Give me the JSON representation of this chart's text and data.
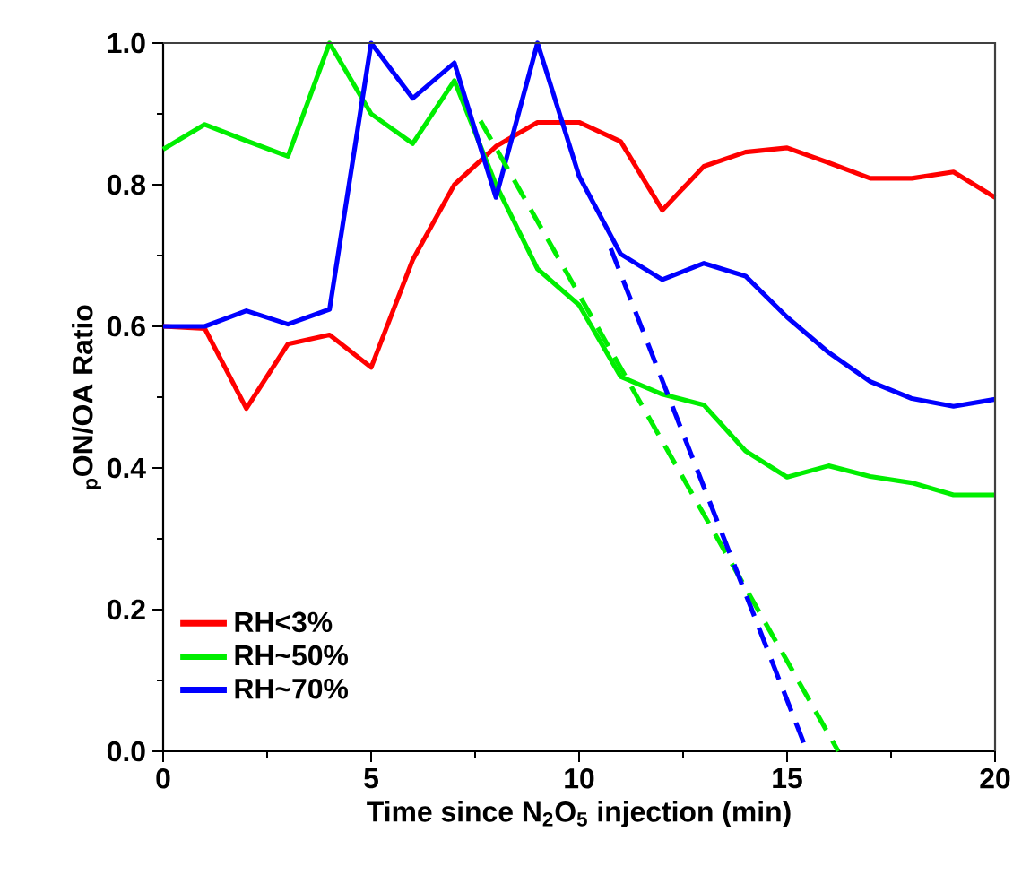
{
  "chart_data": {
    "type": "line",
    "xlabel": "Time since N$_{2}$O$_{5}$ injection (min)",
    "ylabel": "$_{p}$ON/OA Ratio",
    "x": [
      0,
      1,
      2,
      3,
      4,
      5,
      6,
      7,
      8,
      9,
      10,
      11,
      12,
      13,
      14,
      15,
      16,
      17,
      18,
      19,
      20
    ],
    "xlim": [
      0,
      20
    ],
    "xticks": [
      0,
      5,
      10,
      15,
      20
    ],
    "ylim": [
      0,
      1
    ],
    "yticks": [
      {
        "value": 0,
        "label": "0.0"
      },
      {
        "value": 0.2,
        "label": "0.2"
      },
      {
        "value": 0.4,
        "label": "0.4"
      },
      {
        "value": 0.6,
        "label": "0.6"
      },
      {
        "value": 0.8,
        "label": "0.8"
      },
      {
        "value": 1,
        "label": "1.0"
      }
    ],
    "grid": false,
    "legend": "bottom left",
    "marker": "none",
    "line_style": "solid",
    "series": [
      {
        "name": "RH<3%",
        "color": "#ff0000",
        "values": [
          0.6,
          0.597,
          0.484,
          0.575,
          0.588,
          0.542,
          0.694,
          0.8,
          0.854,
          0.888,
          0.888,
          0.861,
          0.764,
          0.826,
          0.846,
          0.852,
          0.831,
          0.809,
          0.809,
          0.818,
          0.782
        ]
      },
      {
        "name": "RH~50%",
        "color": "#00ee00",
        "values": [
          0.85,
          0.885,
          0.862,
          0.84,
          1.0,
          0.9,
          0.858,
          0.947,
          0.8,
          0.681,
          0.63,
          0.529,
          0.504,
          0.489,
          0.424,
          0.387,
          0.403,
          0.388,
          0.379,
          0.362,
          0.362
        ]
      },
      {
        "name": "RH~70%",
        "color": "#0000ff",
        "values": [
          0.6,
          0.6,
          0.622,
          0.603,
          0.624,
          1.0,
          0.922,
          0.972,
          0.782,
          1.0,
          0.812,
          0.702,
          0.666,
          0.689,
          0.671,
          0.613,
          0.563,
          0.522,
          0.498,
          0.487,
          0.497
        ]
      },
      {
        "type": "line",
        "line_style": "dashed",
        "color": "#00ee00",
        "x": [
          7.63,
          16.23
        ],
        "values": [
          0.89,
          0
        ]
      },
      {
        "type": "line",
        "line_style": "dashed",
        "color": "#0000ff",
        "x": [
          10.76,
          15.48
        ],
        "values": [
          0.71,
          0
        ]
      }
    ]
  }
}
